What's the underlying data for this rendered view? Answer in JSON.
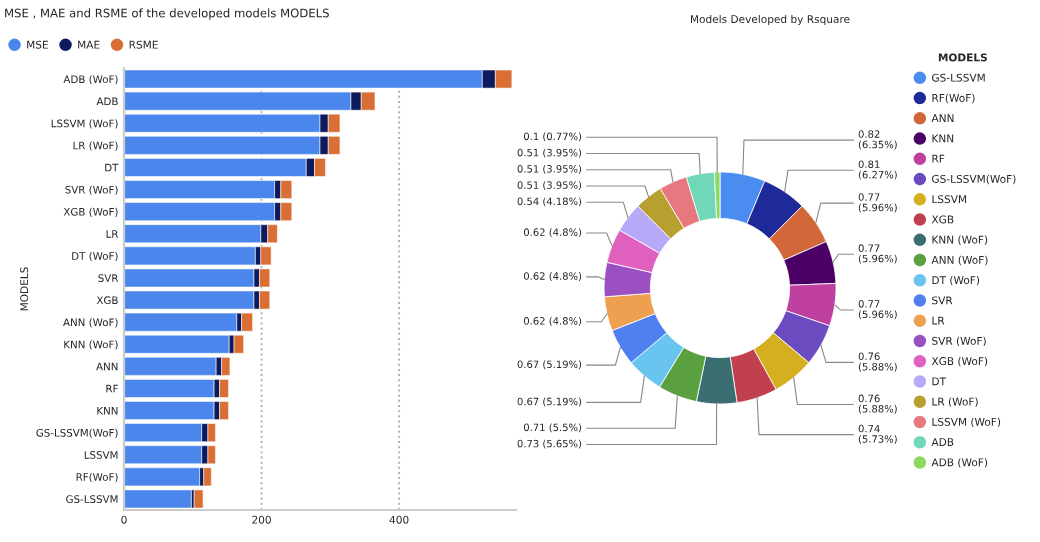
{
  "chart_data": [
    {
      "type": "bar",
      "orientation": "horizontal",
      "stacked": true,
      "title": "MSE , MAE and RSME of the developed models MODELS",
      "ylabel": "MODELS",
      "categories": [
        "ADB (WoF)",
        "ADB",
        "LSSVM (WoF)",
        "LR (WoF)",
        "DT",
        "SVR (WoF)",
        "XGB (WoF)",
        "LR",
        "DT (WoF)",
        "SVR",
        "XGB",
        "ANN (WoF)",
        "KNN (WoF)",
        "ANN",
        "RF",
        "KNN",
        "GS-LSSVM(WoF)",
        "LSSVM",
        "RF(WoF)",
        "GS-LSSVM"
      ],
      "series": [
        {
          "name": "MSE",
          "color": "#4a86ec",
          "values": [
            521,
            330,
            285,
            285,
            265,
            219,
            219,
            199,
            191,
            189,
            189,
            164,
            153,
            134,
            131,
            131,
            113,
            113,
            110,
            98
          ]
        },
        {
          "name": "MAE",
          "color": "#0d1a5e",
          "values": [
            19,
            15,
            12,
            12,
            12,
            9,
            9,
            10,
            8,
            8,
            8,
            7,
            7,
            8,
            8,
            8,
            9,
            9,
            6,
            4
          ]
        },
        {
          "name": "RSME",
          "color": "#d96f35",
          "values": [
            24,
            20,
            17,
            17,
            16,
            16,
            16,
            14,
            15,
            15,
            15,
            16,
            14,
            12,
            13,
            13,
            11,
            11,
            11,
            13
          ]
        }
      ],
      "xlim": [
        0,
        570
      ],
      "xticks": [
        0,
        200,
        400
      ],
      "grid": "x",
      "legend": "top left"
    },
    {
      "type": "donut",
      "title": "Models Developed by Rsquare",
      "legend_title": "MODELS",
      "legend": "right",
      "categories": [
        "GS-LSSVM",
        "RF(WoF)",
        "ANN",
        "KNN",
        "RF",
        "GS-LSSVM(WoF)",
        "LSSVM",
        "XGB",
        "KNN (WoF)",
        "ANN (WoF)",
        "DT (WoF)",
        "SVR",
        "LR",
        "SVR (WoF)",
        "XGB (WoF)",
        "DT",
        "LR (WoF)",
        "LSSVM (WoF)",
        "ADB",
        "ADB (WoF)"
      ],
      "values": [
        0.82,
        0.81,
        0.77,
        0.77,
        0.77,
        0.76,
        0.76,
        0.74,
        0.73,
        0.71,
        0.67,
        0.67,
        0.62,
        0.62,
        0.62,
        0.54,
        0.51,
        0.51,
        0.51,
        0.1
      ],
      "colors": [
        "#4a8cf0",
        "#1f2a9a",
        "#d2673a",
        "#4b0066",
        "#c040a0",
        "#6a4cc0",
        "#d4b020",
        "#c04050",
        "#3a6e70",
        "#5aa040",
        "#6ac4f0",
        "#5080f0",
        "#eea050",
        "#9a50c0",
        "#e060c0",
        "#b8a8f8",
        "#b8a030",
        "#e87880",
        "#70d8b8",
        "#8cd860"
      ],
      "value_labels": [
        "0.82 (6.35%)",
        "0.81 (6.27%)",
        "0.77 (5.96%)",
        "0.77 (5.96%)",
        "0.77 (5.96%)",
        "0.76 (5.88%)",
        "0.76 (5.88%)",
        "0.74 (5.73%)",
        "0.73 (5.65%)",
        "0.71 (5.5%)",
        "0.67 (5.19%)",
        "0.67 (5.19%)",
        "0.62 (4.8%)",
        "0.62 (4.8%)",
        "0.62 (4.8%)",
        "0.54 (4.18%)",
        "0.51 (3.95%)",
        "0.51 (3.95%)",
        "0.51 (3.95%)",
        "0.1 (0.77%)"
      ]
    }
  ]
}
